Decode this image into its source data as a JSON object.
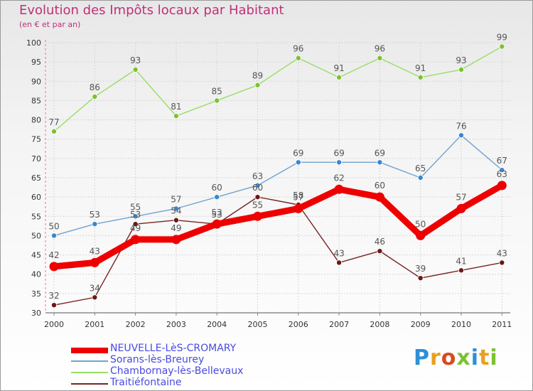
{
  "header": {
    "title": "Evolution des Impôts locaux par Habitant",
    "subtitle": "(en € et par an)"
  },
  "logo": {
    "text": "Proxiti",
    "letter_colors": [
      "#2f8fd8",
      "#e8a020",
      "#d84a1e",
      "#7cc230",
      "#2f8fd8",
      "#e8a020",
      "#7cc230"
    ]
  },
  "chart_data": {
    "type": "line",
    "title": "Evolution des Impôts locaux par Habitant",
    "subtitle": "(en € et par an)",
    "xlabel": "",
    "ylabel": "",
    "x": [
      "2000",
      "2001",
      "2002",
      "2003",
      "2004",
      "2005",
      "2006",
      "2007",
      "2008",
      "2009",
      "2010",
      "2011"
    ],
    "ylim": [
      30,
      100
    ],
    "yticks": [
      30,
      35,
      40,
      45,
      50,
      55,
      60,
      65,
      70,
      75,
      80,
      85,
      90,
      95,
      100
    ],
    "grid": true,
    "legend_position": "bottom-left",
    "series": [
      {
        "name": "NEUVELLE-LèS-CROMARY",
        "color": "#ee0000",
        "marker_color": "#ee0000",
        "thick": true,
        "values": [
          42,
          43,
          49,
          49,
          53,
          55,
          57,
          62,
          60,
          50,
          57,
          63
        ]
      },
      {
        "name": "Sorans-lès-Breurey",
        "color": "#6fa3d0",
        "marker_color": "#3a86d0",
        "thick": false,
        "values": [
          50,
          53,
          55,
          57,
          60,
          63,
          69,
          69,
          69,
          65,
          76,
          67
        ]
      },
      {
        "name": "Chambornay-lès-Bellevaux",
        "color": "#99dd66",
        "marker_color": "#7cc230",
        "thick": false,
        "values": [
          77,
          86,
          93,
          81,
          85,
          89,
          96,
          91,
          96,
          91,
          93,
          99
        ]
      },
      {
        "name": "Traitiéfontaine",
        "color": "#7a2424",
        "marker_color": "#6a1818",
        "thick": false,
        "values": [
          32,
          34,
          53,
          54,
          53,
          60,
          58,
          43,
          46,
          39,
          41,
          43
        ]
      }
    ]
  }
}
